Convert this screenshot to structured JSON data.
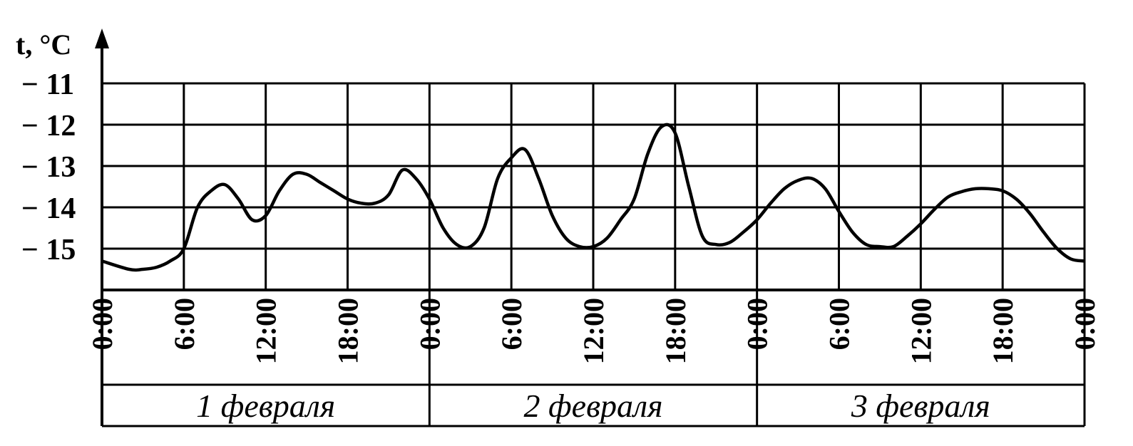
{
  "chart_data": {
    "type": "line",
    "ylabel": "t, °C",
    "ylim": [
      -15.5,
      -11
    ],
    "y_ticks": [
      "− 11",
      "− 12",
      "− 13",
      "− 14",
      "− 15"
    ],
    "y_tick_values": [
      -11,
      -12,
      -13,
      -14,
      -15
    ],
    "xlim": [
      0,
      72
    ],
    "x_tick_labels": [
      "0:00",
      "6:00",
      "12:00",
      "18:00",
      "0:00",
      "6:00",
      "12:00",
      "18:00",
      "0:00",
      "6:00",
      "12:00",
      "18:00",
      "0:00"
    ],
    "x_tick_hours": [
      0,
      6,
      12,
      18,
      24,
      30,
      36,
      42,
      48,
      54,
      60,
      66,
      72
    ],
    "days": [
      "1 февраля",
      "2 февраля",
      "3 февраля"
    ],
    "grid": true,
    "series": [
      {
        "x": [
          0,
          2,
          3,
          4,
          5,
          6,
          7,
          8,
          9,
          10,
          11,
          12,
          13,
          14,
          15,
          16,
          17,
          18,
          19,
          20,
          21,
          22,
          23,
          24,
          25,
          26,
          27,
          28,
          29,
          30,
          31,
          32,
          33,
          34,
          35,
          36,
          37,
          38,
          39,
          40,
          41,
          42,
          43,
          44,
          45,
          46,
          47,
          48,
          49,
          50,
          51,
          52,
          53,
          54,
          55,
          56,
          57,
          58,
          59,
          60,
          61,
          62,
          63,
          64,
          65,
          66,
          67,
          68,
          69,
          70,
          71,
          72
        ],
        "values": [
          -15.3,
          -15.5,
          -15.5,
          -15.45,
          -15.3,
          -15.0,
          -14.0,
          -13.6,
          -13.45,
          -13.8,
          -14.3,
          -14.2,
          -13.6,
          -13.2,
          -13.2,
          -13.4,
          -13.6,
          -13.8,
          -13.9,
          -13.9,
          -13.7,
          -13.1,
          -13.3,
          -13.8,
          -14.5,
          -14.9,
          -14.95,
          -14.5,
          -13.3,
          -12.8,
          -12.6,
          -13.3,
          -14.2,
          -14.75,
          -14.95,
          -14.95,
          -14.75,
          -14.3,
          -13.8,
          -12.7,
          -12.05,
          -12.2,
          -13.5,
          -14.7,
          -14.9,
          -14.85,
          -14.6,
          -14.3,
          -13.9,
          -13.55,
          -13.35,
          -13.3,
          -13.55,
          -14.1,
          -14.6,
          -14.9,
          -14.95,
          -14.95,
          -14.7,
          -14.4,
          -14.05,
          -13.75,
          -13.62,
          -13.55,
          -13.55,
          -13.6,
          -13.8,
          -14.15,
          -14.6,
          -15.0,
          -15.25,
          -15.3
        ]
      }
    ]
  }
}
